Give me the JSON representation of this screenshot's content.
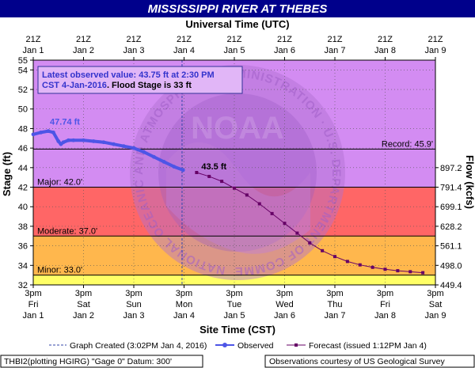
{
  "title": "MISSISSIPPI RIVER AT THEBES",
  "colors": {
    "title_bg": "#00008b",
    "plot_bg": "#d38cf2",
    "major_band": "#ff6666",
    "moderate_band": "#ffb74d",
    "minor_band": "#ffff66",
    "observed": "#4d55e6",
    "forecast": "#660066",
    "watermark": "#b06fd1"
  },
  "chart_data": {
    "type": "line",
    "top_axis_label": "Universal Time (UTC)",
    "bottom_axis_label": "Site Time (CST)",
    "ylabel": "Stage (ft)",
    "ylabel_right": "Flow (kcfs)",
    "ylim": [
      32,
      55
    ],
    "yticks": [
      32,
      34,
      36,
      38,
      40,
      42,
      44,
      46,
      48,
      50,
      52,
      54,
      55
    ],
    "xlim": [
      0,
      8
    ],
    "x_unit": "days from Jan 1 3pm CST",
    "utc_ticks": [
      {
        "hour": "21Z",
        "date": "Jan 1"
      },
      {
        "hour": "21Z",
        "date": "Jan 2"
      },
      {
        "hour": "21Z",
        "date": "Jan 3"
      },
      {
        "hour": "21Z",
        "date": "Jan 4"
      },
      {
        "hour": "21Z",
        "date": "Jan 5"
      },
      {
        "hour": "21Z",
        "date": "Jan 6"
      },
      {
        "hour": "21Z",
        "date": "Jan 7"
      },
      {
        "hour": "21Z",
        "date": "Jan 8"
      },
      {
        "hour": "21Z",
        "date": "Jan 9"
      }
    ],
    "cst_ticks": [
      {
        "time": "3pm",
        "day": "Fri",
        "date": "Jan 1"
      },
      {
        "time": "3pm",
        "day": "Sat",
        "date": "Jan 2"
      },
      {
        "time": "3pm",
        "day": "Sun",
        "date": "Jan 3"
      },
      {
        "time": "3pm",
        "day": "Mon",
        "date": "Jan 4"
      },
      {
        "time": "3pm",
        "day": "Tue",
        "date": "Jan 5"
      },
      {
        "time": "3pm",
        "day": "Wed",
        "date": "Jan 6"
      },
      {
        "time": "3pm",
        "day": "Thu",
        "date": "Jan 7"
      },
      {
        "time": "3pm",
        "day": "Fri",
        "date": "Jan 8"
      },
      {
        "time": "3pm",
        "day": "Sat",
        "date": "Jan 9"
      }
    ],
    "flow_ticks": [
      {
        "stage": 44,
        "label": "897.2"
      },
      {
        "stage": 42,
        "label": "791.4"
      },
      {
        "stage": 40,
        "label": "699.1"
      },
      {
        "stage": 38,
        "label": "628.2"
      },
      {
        "stage": 36,
        "label": "561.1"
      },
      {
        "stage": 34,
        "label": "498.0"
      },
      {
        "stage": 32,
        "label": "449.4"
      }
    ],
    "flood_categories": [
      {
        "label": "Minor: 33.0'",
        "stage": 33
      },
      {
        "label": "Moderate: 37.0'",
        "stage": 37
      },
      {
        "label": "Major: 42.0'",
        "stage": 42
      },
      {
        "label": "Record: 45.9'",
        "stage": 45.9
      }
    ],
    "graph_created_x": 2.96,
    "observed": {
      "name": "Observed",
      "x": [
        0.0,
        0.15,
        0.3,
        0.4,
        0.5,
        0.55,
        0.6,
        0.7,
        0.8,
        1.0,
        1.2,
        1.4,
        1.6,
        1.8,
        2.0,
        2.2,
        2.4,
        2.6,
        2.8,
        2.98
      ],
      "y": [
        47.4,
        47.6,
        47.74,
        47.6,
        46.7,
        46.4,
        46.6,
        46.8,
        46.8,
        46.8,
        46.7,
        46.6,
        46.4,
        46.2,
        46.0,
        45.6,
        45.1,
        44.6,
        44.1,
        43.75
      ]
    },
    "forecast": {
      "name": "Forecast (issued 1:12PM Jan 4)",
      "x": [
        3.25,
        3.5,
        3.75,
        4.0,
        4.25,
        4.5,
        4.75,
        5.0,
        5.25,
        5.5,
        5.75,
        6.0,
        6.25,
        6.5,
        6.75,
        7.0,
        7.25,
        7.5,
        7.75
      ],
      "y": [
        43.5,
        43.1,
        42.6,
        41.9,
        41.2,
        40.3,
        39.3,
        38.3,
        37.3,
        36.3,
        35.5,
        34.9,
        34.4,
        34.05,
        33.8,
        33.6,
        33.45,
        33.35,
        33.25
      ]
    },
    "annotations": {
      "observed_peak": "47.74 ft",
      "forecast_start": "43.5 ft"
    }
  },
  "info_box": {
    "line1": "Latest observed value: 43.75 ft at 2:30 PM",
    "line2a": "CST 4-Jan-2016",
    "line2b": ". Flood Stage is 33 ft"
  },
  "watermark": {
    "center": "NOAA",
    "ring": "NATIONAL OCEANIC AND ATMOSPHERIC ADMINISTRATION · U.S. DEPARTMENT OF COMMERCE"
  },
  "legend": {
    "graph_created": "Graph Created (3:02PM Jan 4, 2016)",
    "observed": "Observed",
    "forecast": "Forecast (issued 1:12PM Jan 4)"
  },
  "footer": {
    "left": "THBI2(plotting HGIRG) \"Gage 0\" Datum: 300'",
    "right": "Observations courtesy of US Geological Survey"
  }
}
